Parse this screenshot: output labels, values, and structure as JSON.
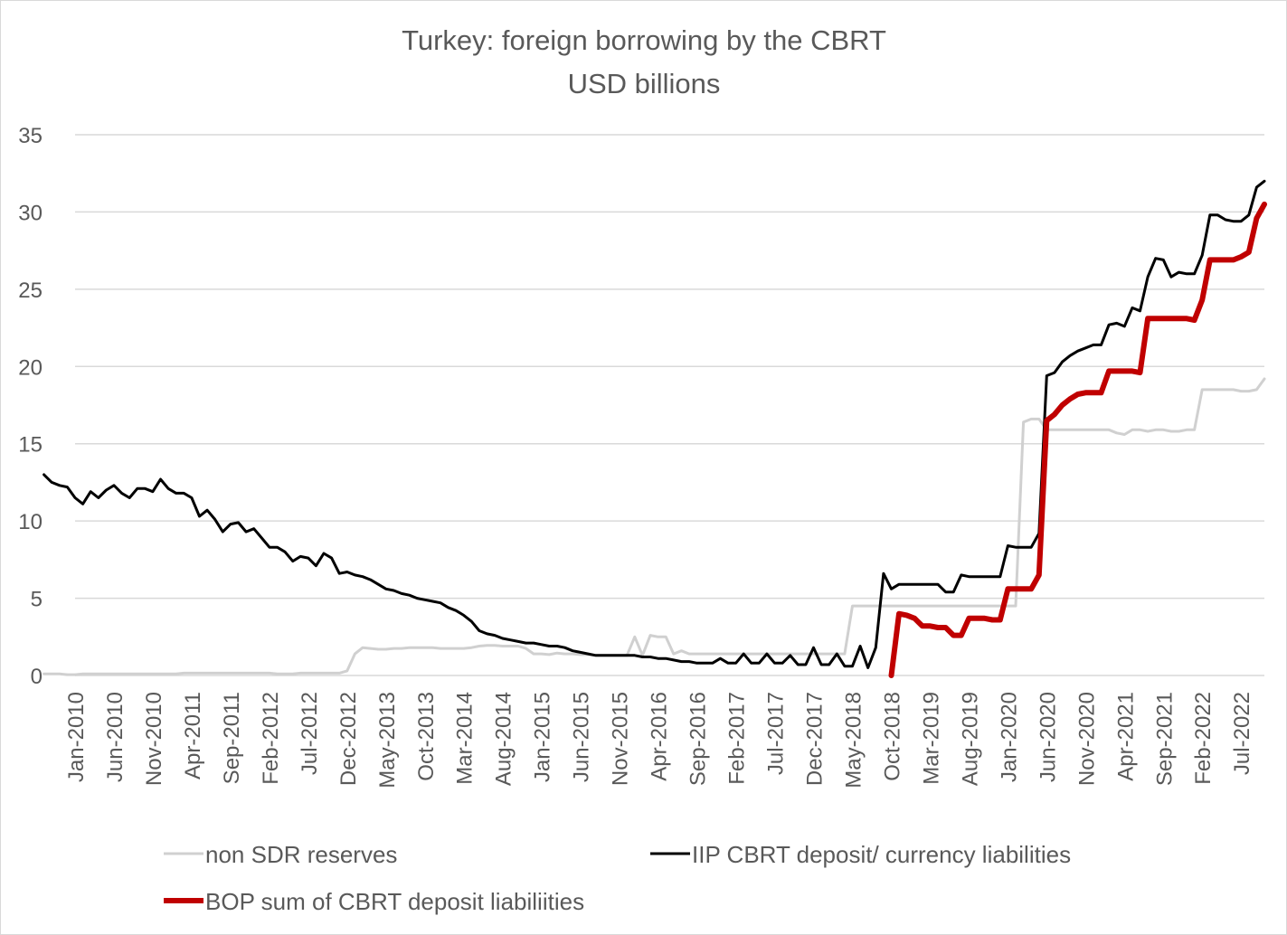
{
  "chart_data": {
    "type": "line",
    "title": "Turkey: foreign borrowing by the CBRT",
    "subtitle": "USD billions",
    "xlabel": "",
    "ylabel": "",
    "ylim": [
      0,
      35
    ],
    "yticks": [
      "0",
      "5",
      "10",
      "15",
      "20",
      "25",
      "30",
      "35"
    ],
    "grid": true,
    "legend_position": "bottom",
    "x_start": "Jan-2010",
    "x_end": "Oct-2022",
    "xtick_labels": [
      "Jan-2010",
      "Jun-2010",
      "Nov-2010",
      "Apr-2011",
      "Sep-2011",
      "Feb-2012",
      "Jul-2012",
      "Dec-2012",
      "May-2013",
      "Oct-2013",
      "Mar-2014",
      "Aug-2014",
      "Jan-2015",
      "Jun-2015",
      "Nov-2015",
      "Apr-2016",
      "Sep-2016",
      "Feb-2017",
      "Jul-2017",
      "Dec-2017",
      "May-2018",
      "Oct-2018",
      "Mar-2019",
      "Aug-2019",
      "Jan-2020",
      "Jun-2020",
      "Nov-2020",
      "Apr-2021",
      "Sep-2021",
      "Feb-2022",
      "Jul-2022"
    ],
    "series": [
      {
        "name": "non SDR reserves",
        "color": "#d0d0d0",
        "values": [
          0.1,
          0.1,
          0.1,
          0.05,
          0.05,
          0.1,
          0.1,
          0.1,
          0.1,
          0.1,
          0.1,
          0.1,
          0.1,
          0.1,
          0.1,
          0.1,
          0.1,
          0.1,
          0.15,
          0.15,
          0.15,
          0.15,
          0.15,
          0.15,
          0.15,
          0.15,
          0.15,
          0.15,
          0.15,
          0.15,
          0.1,
          0.1,
          0.1,
          0.15,
          0.15,
          0.15,
          0.15,
          0.15,
          0.15,
          0.3,
          1.4,
          1.8,
          1.75,
          1.7,
          1.7,
          1.75,
          1.75,
          1.8,
          1.8,
          1.8,
          1.8,
          1.75,
          1.75,
          1.75,
          1.75,
          1.8,
          1.9,
          1.95,
          1.95,
          1.9,
          1.9,
          1.9,
          1.75,
          1.4,
          1.4,
          1.35,
          1.45,
          1.4,
          1.4,
          1.35,
          1.35,
          1.3,
          1.3,
          1.3,
          1.3,
          1.3,
          2.5,
          1.3,
          2.6,
          2.5,
          2.5,
          1.4,
          1.6,
          1.4,
          1.4,
          1.4,
          1.4,
          1.4,
          1.4,
          1.4,
          1.4,
          1.4,
          1.4,
          1.4,
          1.4,
          1.4,
          1.4,
          1.4,
          1.4,
          1.4,
          1.4,
          1.4,
          1.4,
          1.4,
          4.5,
          4.5,
          4.5,
          4.5,
          4.5,
          4.5,
          4.5,
          4.5,
          4.5,
          4.5,
          4.5,
          4.5,
          4.5,
          4.5,
          4.5,
          4.5,
          4.5,
          4.5,
          4.5,
          4.5,
          4.5,
          4.5,
          16.4,
          16.6,
          16.6,
          15.9,
          15.9,
          15.9,
          15.9,
          15.9,
          15.9,
          15.9,
          15.9,
          15.9,
          15.7,
          15.6,
          15.9,
          15.9,
          15.8,
          15.9,
          15.9,
          15.8,
          15.8,
          15.9,
          15.9,
          18.5,
          18.5,
          18.5,
          18.5,
          18.5,
          18.4,
          18.4,
          18.5,
          19.2
        ]
      },
      {
        "name": "IIP CBRT deposit/ currency liabilities",
        "color": "#000000",
        "values": [
          13.0,
          12.5,
          12.3,
          12.2,
          11.5,
          11.1,
          11.9,
          11.5,
          12.0,
          12.3,
          11.8,
          11.5,
          12.1,
          12.1,
          11.9,
          12.7,
          12.1,
          11.8,
          11.8,
          11.5,
          10.3,
          10.7,
          10.1,
          9.3,
          9.8,
          9.9,
          9.3,
          9.5,
          8.9,
          8.3,
          8.3,
          8.0,
          7.4,
          7.7,
          7.6,
          7.1,
          7.9,
          7.6,
          6.6,
          6.7,
          6.5,
          6.4,
          6.2,
          5.9,
          5.6,
          5.5,
          5.3,
          5.2,
          5.0,
          4.9,
          4.8,
          4.7,
          4.4,
          4.2,
          3.9,
          3.5,
          2.9,
          2.7,
          2.6,
          2.4,
          2.3,
          2.2,
          2.1,
          2.1,
          2.0,
          1.9,
          1.9,
          1.8,
          1.6,
          1.5,
          1.4,
          1.3,
          1.3,
          1.3,
          1.3,
          1.3,
          1.3,
          1.2,
          1.2,
          1.1,
          1.1,
          1.0,
          0.9,
          0.9,
          0.8,
          0.8,
          0.8,
          1.1,
          0.8,
          0.8,
          1.4,
          0.8,
          0.8,
          1.4,
          0.8,
          0.8,
          1.3,
          0.7,
          0.7,
          1.8,
          0.7,
          0.7,
          1.4,
          0.6,
          0.6,
          1.9,
          0.5,
          1.8,
          6.6,
          5.6,
          5.9,
          5.9,
          5.9,
          5.9,
          5.9,
          5.9,
          5.4,
          5.4,
          6.5,
          6.4,
          6.4,
          6.4,
          6.4,
          6.4,
          8.4,
          8.3,
          8.3,
          8.3,
          9.2,
          19.4,
          19.6,
          20.3,
          20.7,
          21.0,
          21.2,
          21.4,
          21.4,
          22.7,
          22.8,
          22.6,
          23.8,
          23.6,
          25.8,
          27.0,
          26.9,
          25.8,
          26.1,
          26.0,
          26.0,
          27.2,
          29.8,
          29.8,
          29.5,
          29.4,
          29.4,
          29.8,
          31.6,
          32.0
        ]
      },
      {
        "name": "BOP sum of CBRT deposit liabiliities",
        "color": "#c00000",
        "values": [
          0,
          4.0,
          3.9,
          3.7,
          3.2,
          3.2,
          3.1,
          3.1,
          2.6,
          2.6,
          3.7,
          3.7,
          3.7,
          3.6,
          3.6,
          5.6,
          5.6,
          5.6,
          5.6,
          6.5,
          16.5,
          16.9,
          17.5,
          17.9,
          18.2,
          18.3,
          18.3,
          18.3,
          19.7,
          19.7,
          19.7,
          19.7,
          19.6,
          23.1,
          23.1,
          23.1,
          23.1,
          23.1,
          23.1,
          23.0,
          24.3,
          26.9,
          26.9,
          26.9,
          26.9,
          27.1,
          27.4,
          29.6,
          30.5
        ]
      }
    ]
  }
}
